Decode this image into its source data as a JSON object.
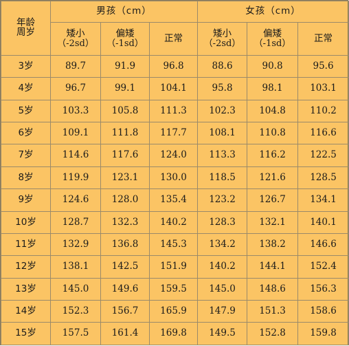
{
  "header": {
    "age_line1": "年龄",
    "age_line2": "周岁",
    "boys": "男孩（cm）",
    "girls": "女孩（cm）",
    "short": "矮小",
    "short_note": "（-2sd）",
    "slightly_short": "偏矮",
    "slightly_short_note": "（-1sd）",
    "normal": "正常"
  },
  "colors": {
    "background": "#fbc464",
    "short_value": "#e8311a",
    "text": "#1a1a1a"
  },
  "rows": [
    {
      "age": "3岁",
      "boy_short": "89.7",
      "boy_slight": "91.9",
      "boy_normal": "96.8",
      "girl_short": "88.6",
      "girl_slight": "90.8",
      "girl_normal": "95.6"
    },
    {
      "age": "4岁",
      "boy_short": "96.7",
      "boy_slight": "99.1",
      "boy_normal": "104.1",
      "girl_short": "95.8",
      "girl_slight": "98.1",
      "girl_normal": "103.1"
    },
    {
      "age": "5岁",
      "boy_short": "103.3",
      "boy_slight": "105.8",
      "boy_normal": "111.3",
      "girl_short": "102.3",
      "girl_slight": "104.8",
      "girl_normal": "110.2"
    },
    {
      "age": "6岁",
      "boy_short": "109.1",
      "boy_slight": "111.8",
      "boy_normal": "117.7",
      "girl_short": "108.1",
      "girl_slight": "110.8",
      "girl_normal": "116.6"
    },
    {
      "age": "7岁",
      "boy_short": "114.6",
      "boy_slight": "117.6",
      "boy_normal": "124.0",
      "girl_short": "113.3",
      "girl_slight": "116.2",
      "girl_normal": "122.5"
    },
    {
      "age": "8岁",
      "boy_short": "119.9",
      "boy_slight": "123.1",
      "boy_normal": "130.0",
      "girl_short": "118.5",
      "girl_slight": "121.6",
      "girl_normal": "128.5"
    },
    {
      "age": "9岁",
      "boy_short": "124.6",
      "boy_slight": "128.0",
      "boy_normal": "135.4",
      "girl_short": "123.2",
      "girl_slight": "126.7",
      "girl_normal": "134.1"
    },
    {
      "age": "10岁",
      "boy_short": "128.7",
      "boy_slight": "132.3",
      "boy_normal": "140.2",
      "girl_short": "128.3",
      "girl_slight": "132.1",
      "girl_normal": "140.1"
    },
    {
      "age": "11岁",
      "boy_short": "132.9",
      "boy_slight": "136.8",
      "boy_normal": "145.3",
      "girl_short": "134.2",
      "girl_slight": "138.2",
      "girl_normal": "146.6"
    },
    {
      "age": "12岁",
      "boy_short": "138.1",
      "boy_slight": "142.5",
      "boy_normal": "151.9",
      "girl_short": "140.2",
      "girl_slight": "144.1",
      "girl_normal": "152.4"
    },
    {
      "age": "13岁",
      "boy_short": "145.0",
      "boy_slight": "149.6",
      "boy_normal": "159.5",
      "girl_short": "145.0",
      "girl_slight": "148.6",
      "girl_normal": "156.3"
    },
    {
      "age": "14岁",
      "boy_short": "152.3",
      "boy_slight": "156.7",
      "boy_normal": "165.9",
      "girl_short": "147.9",
      "girl_slight": "151.3",
      "girl_normal": "158.6"
    },
    {
      "age": "15岁",
      "boy_short": "157.5",
      "boy_slight": "161.4",
      "boy_normal": "169.8",
      "girl_short": "149.5",
      "girl_slight": "152.8",
      "girl_normal": "159.8"
    }
  ]
}
